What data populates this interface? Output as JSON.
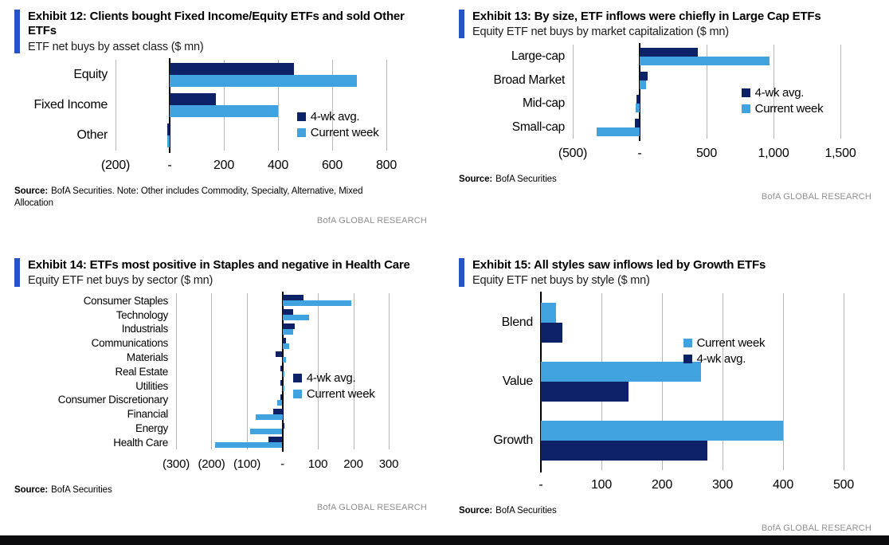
{
  "page": {
    "accent_color": "#2454c7",
    "background_color": "#ffffff",
    "bottom_bar_color": "#0c0c10",
    "dark_series_color": "#0d2167",
    "light_series_color": "#41a2e0"
  },
  "chart_data": [
    {
      "id": "exhibit-12",
      "type": "bar",
      "orientation": "horizontal",
      "title": "Exhibit 12: Clients bought Fixed Income/Equity ETFs and sold Other ETFs",
      "subtitle": "ETF net buys by asset class ($ mn)",
      "categories": [
        "Equity",
        "Fixed Income",
        "Other"
      ],
      "series": [
        {
          "name": "4-wk avg.",
          "color": "#0d2167",
          "values": [
            460,
            170,
            -10
          ]
        },
        {
          "name": "Current week",
          "color": "#41a2e0",
          "values": [
            690,
            400,
            -10
          ]
        }
      ],
      "xlim": [
        -200,
        800
      ],
      "grid": true,
      "legend_position": "inside-right",
      "ticks": [
        {
          "value": -200,
          "label": "(200)"
        },
        {
          "value": 0,
          "label": "-"
        },
        {
          "value": 200,
          "label": "200"
        },
        {
          "value": 400,
          "label": "400"
        },
        {
          "value": 600,
          "label": "600"
        },
        {
          "value": 800,
          "label": "800"
        }
      ],
      "source_label": "Source:",
      "source_text": "BofA Securities. Note: Other includes Commodity, Specialty, Alternative, Mixed Allocation",
      "brand": "BofA GLOBAL RESEARCH"
    },
    {
      "id": "exhibit-13",
      "type": "bar",
      "orientation": "horizontal",
      "title": "Exhibit 13: By size, ETF inflows were chiefly in Large Cap ETFs",
      "subtitle": "Equity ETF net buys by market capitalization ($ mn)",
      "categories": [
        "Large-cap",
        "Broad Market",
        "Mid-cap",
        "Small-cap"
      ],
      "series": [
        {
          "name": "4-wk avg.",
          "color": "#0d2167",
          "values": [
            435,
            60,
            -25,
            -35
          ]
        },
        {
          "name": "Current week",
          "color": "#41a2e0",
          "values": [
            970,
            50,
            -30,
            -320
          ]
        }
      ],
      "xlim": [
        -500,
        1500
      ],
      "grid": true,
      "legend_position": "inside-right",
      "ticks": [
        {
          "value": -500,
          "label": "(500)"
        },
        {
          "value": 0,
          "label": "-"
        },
        {
          "value": 500,
          "label": "500"
        },
        {
          "value": 1000,
          "label": "1,000"
        },
        {
          "value": 1500,
          "label": "1,500"
        }
      ],
      "source_label": "Source:",
      "source_text": "BofA Securities",
      "brand": "BofA GLOBAL RESEARCH"
    },
    {
      "id": "exhibit-14",
      "type": "bar",
      "orientation": "horizontal",
      "title": "Exhibit 14: ETFs most positive in Staples and negative in Health Care",
      "subtitle": "Equity ETF net buys by sector ($ mn)",
      "categories": [
        "Consumer Staples",
        "Technology",
        "Industrials",
        "Communications",
        "Materials",
        "Real Estate",
        "Utilities",
        "Consumer Discretionary",
        "Financial",
        "Energy",
        "Health Care"
      ],
      "series": [
        {
          "name": "4-wk avg.",
          "color": "#0d2167",
          "values": [
            60,
            30,
            35,
            10,
            -20,
            -5,
            -5,
            -5,
            -25,
            5,
            -40
          ]
        },
        {
          "name": "Current week",
          "color": "#41a2e0",
          "values": [
            195,
            75,
            30,
            20,
            10,
            5,
            5,
            -15,
            -75,
            -90,
            -190
          ]
        }
      ],
      "xlim": [
        -300,
        300
      ],
      "grid": true,
      "legend_position": "inside-right",
      "ticks": [
        {
          "value": -300,
          "label": "(300)"
        },
        {
          "value": -200,
          "label": "(200)"
        },
        {
          "value": -100,
          "label": "(100)"
        },
        {
          "value": 0,
          "label": "-"
        },
        {
          "value": 100,
          "label": "100"
        },
        {
          "value": 200,
          "label": "200"
        },
        {
          "value": 300,
          "label": "300"
        }
      ],
      "source_label": "Source:",
      "source_text": "BofA Securities",
      "brand": "BofA GLOBAL RESEARCH"
    },
    {
      "id": "exhibit-15",
      "type": "bar",
      "orientation": "horizontal",
      "title": "Exhibit 15: All styles saw inflows led by Growth ETFs",
      "subtitle": "Equity ETF net buys by style ($ mn)",
      "categories": [
        "Blend",
        "Value",
        "Growth"
      ],
      "series": [
        {
          "name": "Current week",
          "color": "#41a2e0",
          "values": [
            25,
            265,
            400
          ]
        },
        {
          "name": "4-wk avg.",
          "color": "#0d2167",
          "values": [
            35,
            145,
            275
          ]
        }
      ],
      "xlim": [
        0,
        500
      ],
      "grid": true,
      "legend_position": "inside-right",
      "ticks": [
        {
          "value": 0,
          "label": "-"
        },
        {
          "value": 100,
          "label": "100"
        },
        {
          "value": 200,
          "label": "200"
        },
        {
          "value": 300,
          "label": "300"
        },
        {
          "value": 400,
          "label": "400"
        },
        {
          "value": 500,
          "label": "500"
        }
      ],
      "source_label": "Source:",
      "source_text": "BofA Securities",
      "brand": "BofA GLOBAL RESEARCH"
    }
  ]
}
